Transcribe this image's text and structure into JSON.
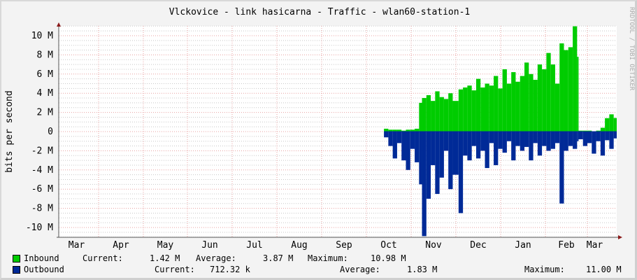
{
  "chart_data": {
    "type": "area",
    "title": "Vlckovice - link hasicarna - Traffic - wlan60-station-1",
    "ylabel": "bits per second",
    "xlabel": "",
    "watermark": "RRDTOOL / TOBI OETIKER",
    "ylim": [
      -11,
      11
    ],
    "y_unit": "M",
    "y_ticks": [
      "10 M",
      "8 M",
      "6 M",
      "4 M",
      "2 M",
      "0",
      "-2 M",
      "-4 M",
      "-6 M",
      "-8 M",
      "-10 M"
    ],
    "y_tick_values": [
      10,
      8,
      6,
      4,
      2,
      0,
      -2,
      -4,
      -6,
      -8,
      -10
    ],
    "x_ticks": [
      "Mar",
      "Apr",
      "May",
      "Jun",
      "Jul",
      "Aug",
      "Sep",
      "Oct",
      "Nov",
      "Dec",
      "Jan",
      "Feb",
      "Mar"
    ],
    "grid": true,
    "colors": {
      "inbound": "#00cc00",
      "outbound": "#002a97",
      "major_grid": "#e8a0a0",
      "minor_grid": "#c8c8c8",
      "axis_arrow": "#8b1a1a"
    },
    "series": [
      {
        "name": "Inbound",
        "color": "#00cc00"
      },
      {
        "name": "Outbound",
        "color": "#002a97"
      }
    ],
    "points": [
      [
        "Oct 13",
        0.3,
        -0.6
      ],
      [
        "Oct 16",
        0.2,
        -1.5
      ],
      [
        "Oct 19",
        0.2,
        -2.8
      ],
      [
        "Oct 22",
        0.2,
        -1.2
      ],
      [
        "Oct 25",
        0.1,
        -3.0
      ],
      [
        "Oct 28",
        0.2,
        -4.0
      ],
      [
        "Oct 31",
        0.2,
        -1.8
      ],
      [
        "Nov 3",
        0.3,
        -3.2
      ],
      [
        "Nov 6",
        3.0,
        -5.5
      ],
      [
        "Nov 8",
        3.5,
        -11.0
      ],
      [
        "Nov 11",
        3.8,
        -7.0
      ],
      [
        "Nov 14",
        3.2,
        -3.5
      ],
      [
        "Nov 17",
        4.2,
        -6.5
      ],
      [
        "Nov 20",
        3.6,
        -4.8
      ],
      [
        "Nov 23",
        3.4,
        -2.0
      ],
      [
        "Nov 26",
        4.0,
        -6.0
      ],
      [
        "Nov 29",
        3.2,
        -4.5
      ],
      [
        "Dec 3",
        4.4,
        -8.5
      ],
      [
        "Dec 6",
        4.6,
        -2.5
      ],
      [
        "Dec 9",
        4.8,
        -3.0
      ],
      [
        "Dec 12",
        4.3,
        -1.5
      ],
      [
        "Dec 15",
        5.5,
        -2.8
      ],
      [
        "Dec 18",
        4.6,
        -2.0
      ],
      [
        "Dec 21",
        5.0,
        -3.8
      ],
      [
        "Dec 24",
        4.8,
        -1.2
      ],
      [
        "Dec 27",
        5.8,
        -3.5
      ],
      [
        "Dec 30",
        4.5,
        -1.8
      ],
      [
        "Jan 2",
        6.5,
        -2.2
      ],
      [
        "Jan 5",
        5.0,
        -1.0
      ],
      [
        "Jan 8",
        6.2,
        -3.0
      ],
      [
        "Jan 11",
        5.2,
        -1.5
      ],
      [
        "Jan 14",
        5.8,
        -2.0
      ],
      [
        "Jan 17",
        7.2,
        -1.6
      ],
      [
        "Jan 20",
        6.0,
        -3.0
      ],
      [
        "Jan 23",
        5.4,
        -1.2
      ],
      [
        "Jan 26",
        7.0,
        -2.5
      ],
      [
        "Jan 29",
        6.5,
        -1.5
      ],
      [
        "Feb 1",
        8.2,
        -2.0
      ],
      [
        "Feb 4",
        7.0,
        -1.8
      ],
      [
        "Feb 7",
        5.0,
        -1.2
      ],
      [
        "Feb 10",
        9.2,
        -7.5
      ],
      [
        "Feb 13",
        8.5,
        -2.0
      ],
      [
        "Feb 16",
        8.8,
        -1.5
      ],
      [
        "Feb 19",
        10.98,
        -1.8
      ],
      [
        "Feb 22",
        7.8,
        -1.0
      ],
      [
        "Feb 23",
        0.1,
        -0.8
      ],
      [
        "Feb 26",
        0.1,
        -1.5
      ],
      [
        "Mar 1",
        0.1,
        -1.2
      ],
      [
        "Mar 4",
        0.0,
        -2.3
      ],
      [
        "Mar 7",
        0.1,
        -1.0
      ],
      [
        "Mar 10",
        0.4,
        -2.5
      ],
      [
        "Mar 13",
        1.4,
        -0.9
      ],
      [
        "Mar 16",
        1.8,
        -1.8
      ],
      [
        "Mar 19",
        1.42,
        -0.71
      ]
    ]
  },
  "legend": {
    "inbound": {
      "label": "Inbound",
      "current_label": "Current:",
      "current": "1.42 M",
      "average_label": "Average:",
      "average": "3.87 M",
      "maximum_label": "Maximum:",
      "maximum": "10.98 M"
    },
    "outbound": {
      "label": "Outbound",
      "current_label": "Current:",
      "current": "712.32 k",
      "average_label": "Average:",
      "average": "1.83 M",
      "maximum_label": "Maximum:",
      "maximum": "11.00 M"
    }
  }
}
